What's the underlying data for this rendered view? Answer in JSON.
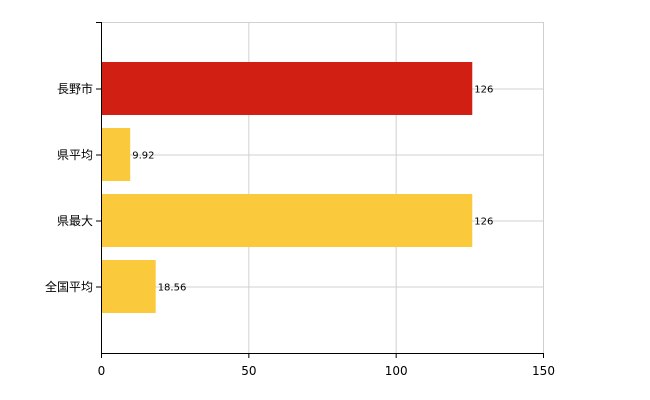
{
  "chart_data": {
    "type": "bar",
    "orientation": "horizontal",
    "categories": [
      "長野市",
      "県平均",
      "県最大",
      "全国平均"
    ],
    "values": [
      126,
      9.92,
      126,
      18.56
    ],
    "value_labels": [
      "126",
      "9.92",
      "126",
      "18.56"
    ],
    "bar_colors": [
      "#d21f14",
      "#fac93c",
      "#fac93c",
      "#fac93c"
    ],
    "xlim": [
      0,
      150
    ],
    "xticks": [
      0,
      50,
      100,
      150
    ],
    "xtick_labels": [
      "0",
      "50",
      "100",
      "150"
    ],
    "grid": true,
    "grid_color": "#d0d0d0",
    "axis_color": "#000000",
    "title": "",
    "xlabel": "",
    "ylabel": ""
  }
}
